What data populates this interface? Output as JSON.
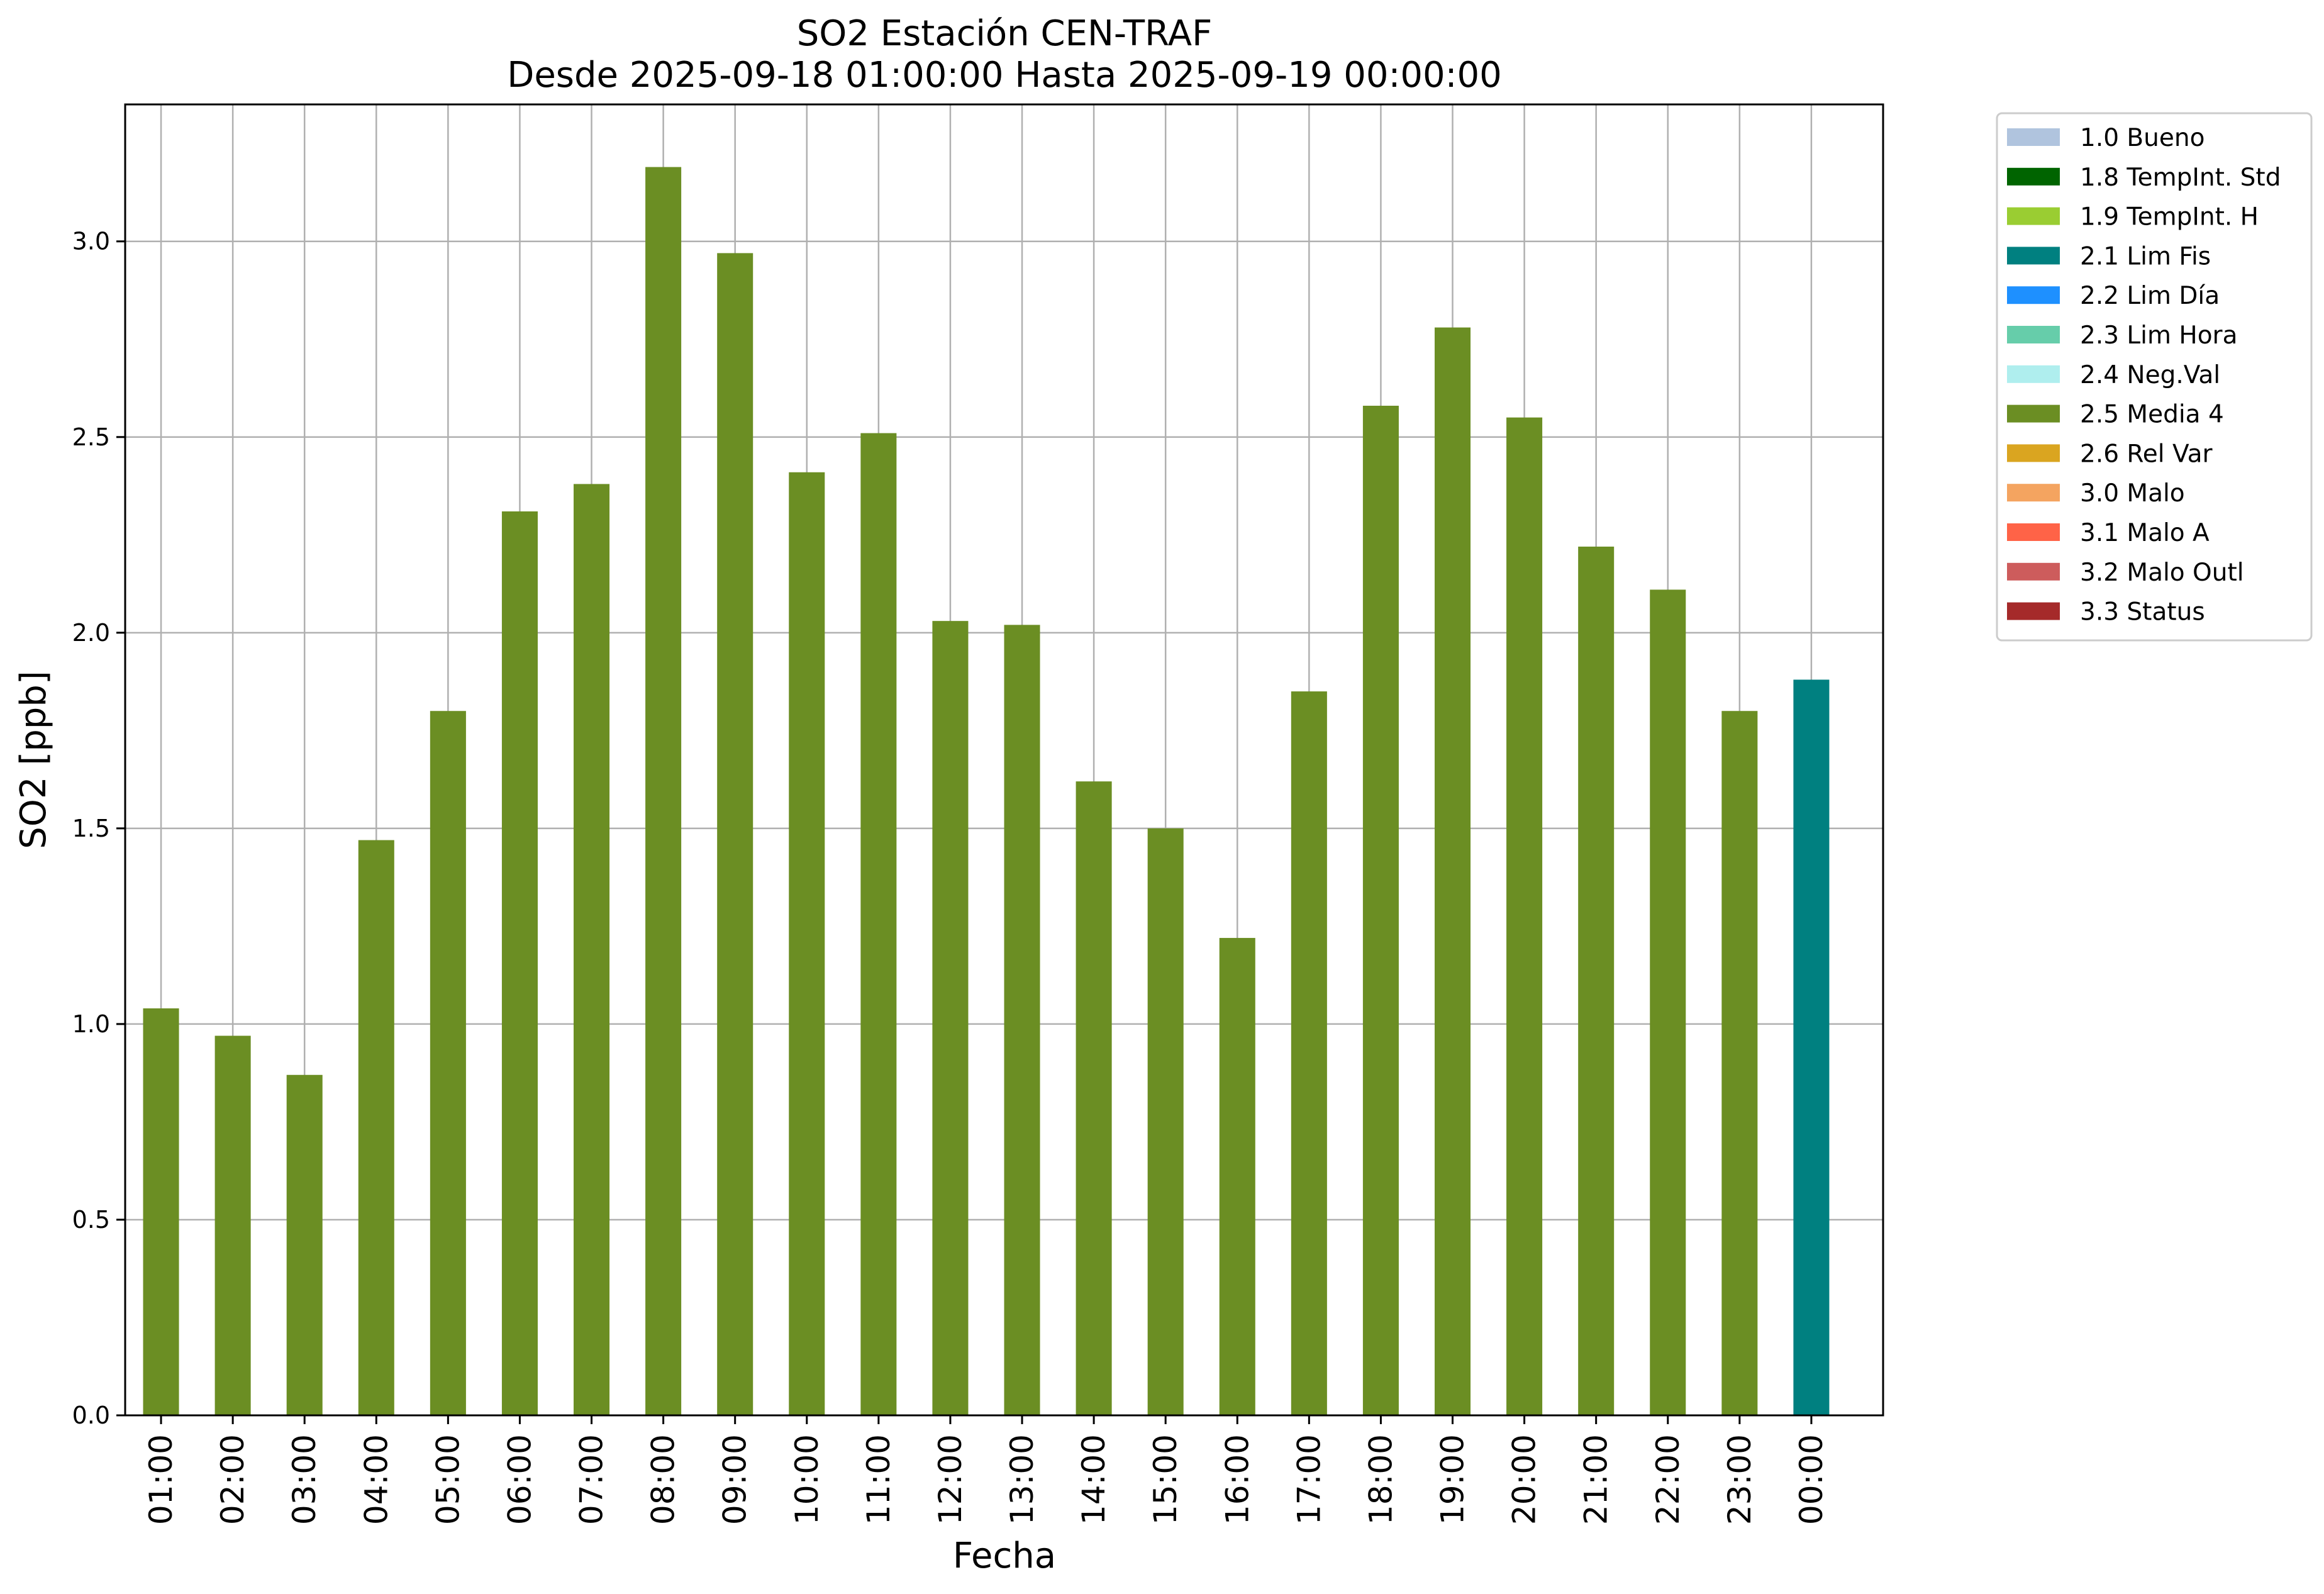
{
  "chart_data": {
    "type": "bar",
    "title": [
      "SO2 Estación CEN-TRAF",
      "Desde 2025-09-18 01:00:00 Hasta 2025-09-19 00:00:00"
    ],
    "xlabel": "Fecha",
    "ylabel": "SO2 [ppb]",
    "ylim": [
      0,
      3.35
    ],
    "yticks": [
      "0.0",
      "0.5",
      "1.0",
      "1.5",
      "2.0",
      "2.5",
      "3.0"
    ],
    "grid": true,
    "legend_position": "outside-top-right",
    "categories": [
      "01:00",
      "02:00",
      "03:00",
      "04:00",
      "05:00",
      "06:00",
      "07:00",
      "08:00",
      "09:00",
      "10:00",
      "11:00",
      "12:00",
      "13:00",
      "14:00",
      "15:00",
      "16:00",
      "17:00",
      "18:00",
      "19:00",
      "20:00",
      "21:00",
      "22:00",
      "23:00",
      "00:00"
    ],
    "values": [
      1.04,
      0.97,
      0.87,
      1.47,
      1.8,
      2.31,
      2.38,
      3.19,
      2.97,
      2.41,
      2.51,
      2.03,
      2.02,
      1.62,
      1.5,
      1.22,
      1.85,
      2.58,
      2.78,
      2.55,
      2.22,
      2.11,
      1.8,
      1.88
    ],
    "bar_flags": [
      "2.5 Media 4",
      "2.5 Media 4",
      "2.5 Media 4",
      "2.5 Media 4",
      "2.5 Media 4",
      "2.5 Media 4",
      "2.5 Media 4",
      "2.5 Media 4",
      "2.5 Media 4",
      "2.5 Media 4",
      "2.5 Media 4",
      "2.5 Media 4",
      "2.5 Media 4",
      "2.5 Media 4",
      "2.5 Media 4",
      "2.5 Media 4",
      "2.5 Media 4",
      "2.5 Media 4",
      "2.5 Media 4",
      "2.5 Media 4",
      "2.5 Media 4",
      "2.5 Media 4",
      "2.5 Media 4",
      "2.1 Lim Fis"
    ],
    "legend": [
      {
        "label": "1.0 Bueno",
        "color": "#b0c4de"
      },
      {
        "label": "1.8 TempInt. Std",
        "color": "#006400"
      },
      {
        "label": "1.9 TempInt. H",
        "color": "#9acd32"
      },
      {
        "label": "2.1 Lim Fis",
        "color": "#008080"
      },
      {
        "label": "2.2 Lim Día",
        "color": "#1e90ff"
      },
      {
        "label": "2.3 Lim Hora",
        "color": "#66cdaa"
      },
      {
        "label": "2.4 Neg.Val",
        "color": "#afeeee"
      },
      {
        "label": "2.5 Media 4",
        "color": "#6b8e23"
      },
      {
        "label": "2.6 Rel Var",
        "color": "#daa520"
      },
      {
        "label": "3.0 Malo",
        "color": "#f4a460"
      },
      {
        "label": "3.1 Malo A",
        "color": "#ff6347"
      },
      {
        "label": "3.2 Malo Outl",
        "color": "#cd5c5c"
      },
      {
        "label": "3.3 Status",
        "color": "#a52a2a"
      }
    ]
  }
}
